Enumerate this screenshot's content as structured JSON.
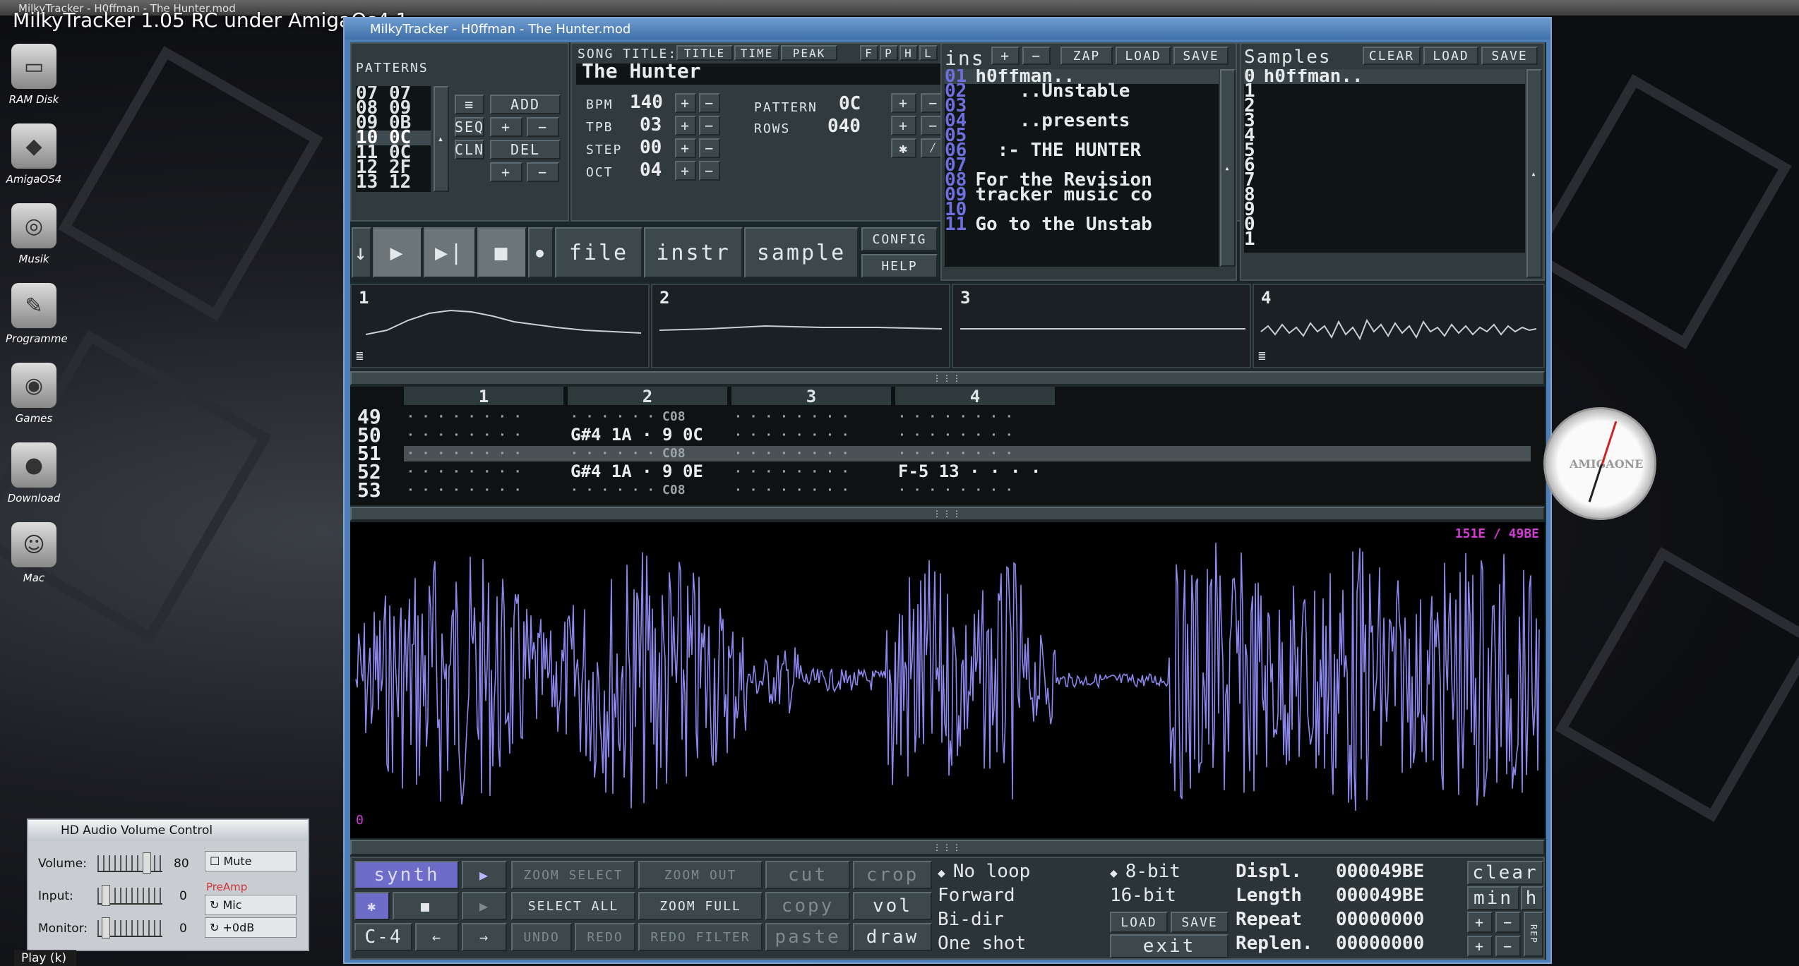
{
  "video": {
    "top": "MilkyTracker - H0ffman - The Hunter.mod",
    "title": "MilkyTracker 1.05 RC under AmigaOs4.1",
    "play_hint": "Play (k)"
  },
  "desktop": [
    {
      "label": "RAM Disk",
      "glyph": "▭"
    },
    {
      "label": "AmigaOS4",
      "glyph": "◆"
    },
    {
      "label": "Musik",
      "glyph": "◎"
    },
    {
      "label": "Programme",
      "glyph": "✎"
    },
    {
      "label": "Games",
      "glyph": "◉"
    },
    {
      "label": "Download",
      "glyph": "●"
    },
    {
      "label": "Mac",
      "glyph": "☺"
    }
  ],
  "window": {
    "title": "MilkyTracker - H0ffman - The Hunter.mod"
  },
  "patterns": {
    "label": "PATTERNS",
    "order": [
      "07 07",
      "08 09",
      "09 0B",
      "10 0C",
      "11 0C",
      "12 2F",
      "13 12"
    ],
    "selected": 3,
    "add": "ADD",
    "seq": "SEQ",
    "cln": "CLN",
    "del": "DEL",
    "menu": "≡",
    "plus": "+",
    "minus": "−"
  },
  "song": {
    "title_label": "SONG TITLE:",
    "title_btn": "TITLE",
    "time_btn": "TIME",
    "peak_btn": "PEAK",
    "f1": "F",
    "f2": "P",
    "f3": "H",
    "f4": "L",
    "title": "The Hunter",
    "bpm_label": "BPM",
    "bpm": "140",
    "tpb_label": "TPB",
    "tpb": "03",
    "step_label": "STEP",
    "step": "00",
    "oct_label": "OCT",
    "oct": "04",
    "pattern_label": "PATTERN",
    "pattern": "0C",
    "rows_label": "ROWS",
    "rows": "040",
    "expand": "✱",
    "shrink": "⁄"
  },
  "transport": {
    "down": "↓",
    "play": "▶",
    "play_pat": "▶|",
    "stop": "■",
    "rec": "●",
    "file": "file",
    "instr": "instr",
    "sample": "sample",
    "config": "CONFIG",
    "help": "HELP"
  },
  "ins": {
    "label": "ins",
    "zap": "ZAP",
    "load": "LOAD",
    "save": "SAVE",
    "plus": "+",
    "minus": "−",
    "items": [
      [
        "01",
        "h0ffman.."
      ],
      [
        "02",
        "    ..Unstable"
      ],
      [
        "03",
        ""
      ],
      [
        "04",
        "    ..presents"
      ],
      [
        "05",
        ""
      ],
      [
        "06",
        "  :- THE HUNTER"
      ],
      [
        "07",
        ""
      ],
      [
        "08",
        "For the Revision"
      ],
      [
        "09",
        "tracker music co"
      ],
      [
        "10",
        ""
      ],
      [
        "11",
        "Go to the Unstab"
      ]
    ]
  },
  "samples": {
    "label": "Samples",
    "clear": "CLEAR",
    "load": "LOAD",
    "save": "SAVE",
    "items": [
      [
        "0",
        "h0ffman.."
      ],
      [
        "1",
        ""
      ],
      [
        "2",
        ""
      ],
      [
        "3",
        ""
      ],
      [
        "4",
        ""
      ],
      [
        "5",
        ""
      ],
      [
        "6",
        ""
      ],
      [
        "7",
        ""
      ],
      [
        "8",
        ""
      ],
      [
        "9",
        ""
      ],
      [
        "0",
        ""
      ],
      [
        "1",
        ""
      ]
    ]
  },
  "scopes": [
    "1",
    "2",
    "3",
    "4"
  ],
  "pattern_editor": {
    "channels": [
      "1",
      "2",
      "3",
      "4"
    ],
    "rows": [
      {
        "n": "49",
        "c": [
          "· · · · · · · ·",
          "· · · · · · C08",
          "· · · · · · · ·",
          "· · · · · · · ·"
        ]
      },
      {
        "n": "50",
        "c": [
          "· · · · · · · ·",
          "G#4 1A · 9 0C",
          "· · · · · · · ·",
          "· · · · · · · ·"
        ]
      },
      {
        "n": "51",
        "c": [
          "· · · · · · · ·",
          "· · · · · · C08",
          "· · · · · · · ·",
          "· · · · · · · ·"
        ]
      },
      {
        "n": "52",
        "c": [
          "· · · · · · · ·",
          "G#4 1A · 9 0E",
          "· · · · · · · ·",
          "F-5 13 · · · ·"
        ]
      },
      {
        "n": "53",
        "c": [
          "· · · · · · · ·",
          "· · · · · · C08",
          "· · · · · · · ·",
          "· · · · · · · ·"
        ]
      }
    ]
  },
  "sample_editor": {
    "range": "151E / 49BE",
    "start": "0"
  },
  "bottom": {
    "synth": "synth",
    "play": "▶",
    "stop": "■",
    "play2": "▶",
    "star": "✱",
    "note": "C-4",
    "left": "←",
    "right": "→",
    "zoom_select": "ZOOM SELECT",
    "zoom_out": "ZOOM OUT",
    "select_all": "SELECT ALL",
    "zoom_full": "ZOOM FULL",
    "undo": "UNDO",
    "redo": "REDO",
    "redo_filter": "REDO FILTER",
    "cut": "cut",
    "crop": "crop",
    "copy": "copy",
    "vol": "vol",
    "paste": "paste",
    "draw": "draw",
    "loop": [
      "No loop",
      "Forward",
      "Bi-dir",
      "One shot"
    ],
    "bits": [
      "8-bit",
      "16-bit"
    ],
    "load": "LOAD",
    "save": "SAVE",
    "exit": "exit",
    "displ_label": "Displ.",
    "displ": "000049BE",
    "length_label": "Length",
    "length": "000049BE",
    "repeat_label": "Repeat",
    "repeat": "00000000",
    "replen_label": "Replen.",
    "replen": "00000000",
    "clear": "clear",
    "min": "min",
    "h": "h",
    "plus": "+",
    "minus": "−",
    "rep": "REP"
  },
  "volume_control": {
    "title": "HD Audio Volume Control",
    "volume_label": "Volume:",
    "volume": "80",
    "mute": "Mute",
    "input_label": "Input:",
    "input": "0",
    "preamp": "PreAmp",
    "mic": "Mic",
    "monitor_label": "Monitor:",
    "monitor": "0",
    "gain": "+0dB"
  },
  "clock": {
    "brand": "AMIGAONE"
  }
}
